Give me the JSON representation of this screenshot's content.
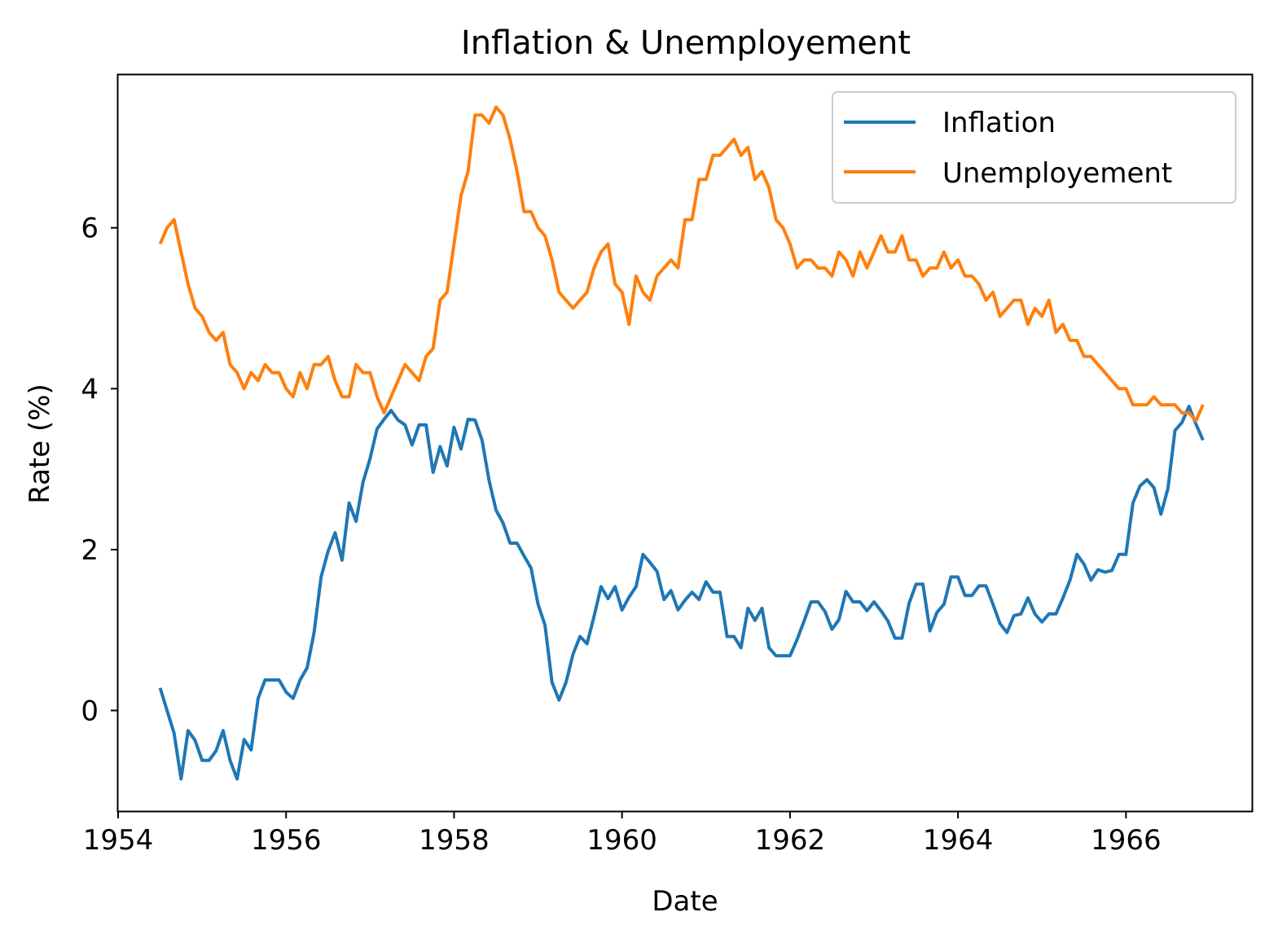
{
  "chart_data": {
    "type": "line",
    "title": "Inflation & Unemployement",
    "xlabel": "Date",
    "ylabel": "Rate (%)",
    "xlim": [
      1954.0,
      1967.5
    ],
    "ylim": [
      -1.25,
      7.9
    ],
    "x_ticks": [
      1954,
      1956,
      1958,
      1960,
      1962,
      1964,
      1966
    ],
    "y_ticks": [
      0,
      2,
      4,
      6
    ],
    "legend_position": "upper right",
    "grid": false,
    "x_start": 1954.5,
    "x_step": 0.0833333,
    "series": [
      {
        "name": "Inflation",
        "color": "#1f77b4",
        "values": [
          0.28,
          0.0,
          -0.28,
          -0.85,
          -0.25,
          -0.37,
          -0.62,
          -0.62,
          -0.5,
          -0.25,
          -0.62,
          -0.85,
          -0.36,
          -0.49,
          0.15,
          0.38,
          0.38,
          0.38,
          0.23,
          0.15,
          0.38,
          0.53,
          0.97,
          1.66,
          1.98,
          2.21,
          1.87,
          2.58,
          2.35,
          2.84,
          3.13,
          3.5,
          3.62,
          3.73,
          3.61,
          3.55,
          3.3,
          3.55,
          3.55,
          2.96,
          3.28,
          3.04,
          3.52,
          3.25,
          3.62,
          3.61,
          3.36,
          2.86,
          2.49,
          2.33,
          2.08,
          2.08,
          1.92,
          1.77,
          1.32,
          1.06,
          0.35,
          0.13,
          0.35,
          0.7,
          0.92,
          0.83,
          1.17,
          1.54,
          1.39,
          1.54,
          1.25,
          1.41,
          1.54,
          1.94,
          1.84,
          1.73,
          1.38,
          1.49,
          1.25,
          1.37,
          1.47,
          1.38,
          1.6,
          1.47,
          1.47,
          0.92,
          0.92,
          0.78,
          1.27,
          1.12,
          1.27,
          0.78,
          0.68,
          0.68,
          0.68,
          0.88,
          1.11,
          1.35,
          1.35,
          1.23,
          1.01,
          1.13,
          1.48,
          1.35,
          1.35,
          1.24,
          1.35,
          1.24,
          1.11,
          0.9,
          0.9,
          1.33,
          1.57,
          1.57,
          0.99,
          1.22,
          1.32,
          1.66,
          1.66,
          1.43,
          1.43,
          1.55,
          1.55,
          1.32,
          1.08,
          0.97,
          1.18,
          1.2,
          1.4,
          1.2,
          1.1,
          1.2,
          1.2,
          1.4,
          1.62,
          1.94,
          1.82,
          1.62,
          1.75,
          1.72,
          1.74,
          1.94,
          1.94,
          2.58,
          2.79,
          2.87,
          2.77,
          2.44,
          2.76,
          3.48,
          3.58,
          3.78,
          3.56,
          3.36
        ]
      },
      {
        "name": "Unemployement",
        "color": "#ff7f0e",
        "values": [
          5.8,
          6.0,
          6.1,
          5.7,
          5.3,
          5.0,
          4.9,
          4.7,
          4.6,
          4.7,
          4.3,
          4.2,
          4.0,
          4.2,
          4.1,
          4.3,
          4.2,
          4.2,
          4.0,
          3.9,
          4.2,
          4.0,
          4.3,
          4.3,
          4.4,
          4.1,
          3.9,
          3.9,
          4.3,
          4.2,
          4.2,
          3.9,
          3.7,
          3.9,
          4.1,
          4.3,
          4.2,
          4.1,
          4.4,
          4.5,
          5.1,
          5.2,
          5.8,
          6.4,
          6.7,
          7.4,
          7.4,
          7.3,
          7.5,
          7.4,
          7.1,
          6.7,
          6.2,
          6.2,
          6.0,
          5.9,
          5.6,
          5.2,
          5.1,
          5.0,
          5.1,
          5.2,
          5.5,
          5.7,
          5.8,
          5.3,
          5.2,
          4.8,
          5.4,
          5.2,
          5.1,
          5.4,
          5.5,
          5.6,
          5.5,
          6.1,
          6.1,
          6.6,
          6.6,
          6.9,
          6.9,
          7.0,
          7.1,
          6.9,
          7.0,
          6.6,
          6.7,
          6.5,
          6.1,
          6.0,
          5.8,
          5.5,
          5.6,
          5.6,
          5.5,
          5.5,
          5.4,
          5.7,
          5.6,
          5.4,
          5.7,
          5.5,
          5.7,
          5.9,
          5.7,
          5.7,
          5.9,
          5.6,
          5.6,
          5.4,
          5.5,
          5.5,
          5.7,
          5.5,
          5.6,
          5.4,
          5.4,
          5.3,
          5.1,
          5.2,
          4.9,
          5.0,
          5.1,
          5.1,
          4.8,
          5.0,
          4.9,
          5.1,
          4.7,
          4.8,
          4.6,
          4.6,
          4.4,
          4.4,
          4.3,
          4.2,
          4.1,
          4.0,
          4.0,
          3.8,
          3.8,
          3.8,
          3.9,
          3.8,
          3.8,
          3.8,
          3.7,
          3.7,
          3.6,
          3.8
        ]
      }
    ]
  }
}
